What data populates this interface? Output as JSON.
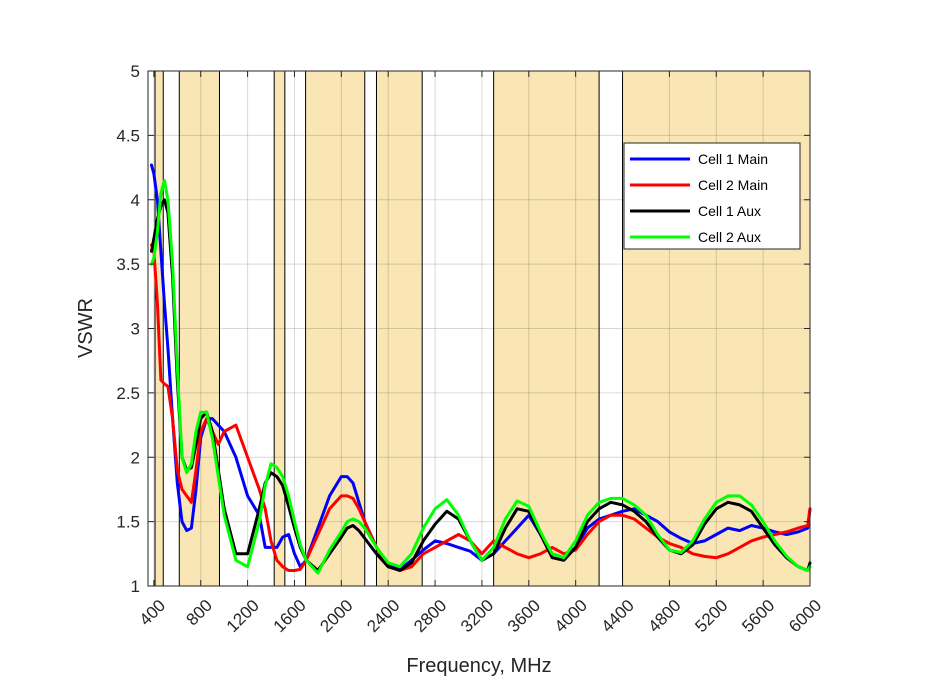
{
  "chart_data": {
    "type": "line",
    "xlabel": "Frequency, MHz",
    "ylabel": "VSWR",
    "xlim": [
      350,
      6000
    ],
    "ylim": [
      1,
      5
    ],
    "xticks": [
      400,
      800,
      1200,
      1600,
      2000,
      2400,
      2800,
      3200,
      3600,
      4000,
      4400,
      4800,
      5200,
      5600,
      6000
    ],
    "xtick_labels": [
      "400",
      "800",
      "1200",
      "1600",
      "2000",
      "2400",
      "2800",
      "3200",
      "3600",
      "4000",
      "4400",
      "4800",
      "5200",
      "5600",
      "6000"
    ],
    "yticks": [
      1,
      1.5,
      2,
      2.5,
      3,
      3.5,
      4,
      4.5,
      5
    ],
    "ytick_labels": [
      "1",
      "1.5",
      "2",
      "2.5",
      "3",
      "3.5",
      "4",
      "4.5",
      "5"
    ],
    "grid": true,
    "legend_position": "top-right",
    "band_color": "#fae6b4",
    "bands": [
      [
        410,
        480
      ],
      [
        617,
        960
      ],
      [
        1427,
        1518
      ],
      [
        1695,
        2200
      ],
      [
        2300,
        2690
      ],
      [
        3300,
        4200
      ],
      [
        4400,
        6000
      ]
    ],
    "series": [
      {
        "name": "Cell 1 Main",
        "color": "#0000ff",
        "x": [
          380,
          400,
          430,
          460,
          490,
          520,
          560,
          600,
          640,
          680,
          720,
          760,
          800,
          850,
          900,
          950,
          1000,
          1100,
          1200,
          1300,
          1350,
          1400,
          1450,
          1500,
          1550,
          1600,
          1650,
          1700,
          1800,
          1900,
          2000,
          2050,
          2100,
          2150,
          2200,
          2300,
          2400,
          2500,
          2600,
          2700,
          2800,
          2900,
          3000,
          3100,
          3200,
          3300,
          3400,
          3500,
          3600,
          3700,
          3800,
          3900,
          4000,
          4100,
          4200,
          4300,
          4400,
          4500,
          4600,
          4700,
          4800,
          4900,
          5000,
          5100,
          5200,
          5300,
          5400,
          5500,
          5600,
          5700,
          5800,
          5900,
          5980,
          6000
        ],
        "y": [
          4.27,
          4.2,
          4.0,
          3.6,
          3.2,
          2.85,
          2.3,
          1.8,
          1.5,
          1.43,
          1.45,
          1.75,
          2.15,
          2.3,
          2.3,
          2.25,
          2.2,
          2.0,
          1.7,
          1.55,
          1.3,
          1.3,
          1.3,
          1.38,
          1.4,
          1.25,
          1.15,
          1.2,
          1.45,
          1.7,
          1.85,
          1.85,
          1.8,
          1.65,
          1.5,
          1.3,
          1.17,
          1.13,
          1.2,
          1.28,
          1.35,
          1.33,
          1.3,
          1.27,
          1.2,
          1.25,
          1.35,
          1.45,
          1.55,
          1.4,
          1.25,
          1.22,
          1.3,
          1.45,
          1.52,
          1.55,
          1.58,
          1.6,
          1.55,
          1.5,
          1.42,
          1.37,
          1.33,
          1.35,
          1.4,
          1.45,
          1.43,
          1.47,
          1.45,
          1.42,
          1.4,
          1.42,
          1.45,
          1.6
        ]
      },
      {
        "name": "Cell 2 Main",
        "color": "#ff0000",
        "x": [
          380,
          400,
          430,
          460,
          490,
          520,
          560,
          600,
          640,
          680,
          720,
          760,
          800,
          850,
          900,
          950,
          1000,
          1100,
          1200,
          1300,
          1350,
          1400,
          1450,
          1500,
          1550,
          1600,
          1650,
          1700,
          1800,
          1900,
          2000,
          2050,
          2100,
          2150,
          2200,
          2300,
          2400,
          2500,
          2600,
          2700,
          2800,
          2900,
          3000,
          3100,
          3200,
          3300,
          3400,
          3500,
          3600,
          3700,
          3800,
          3900,
          4000,
          4100,
          4200,
          4300,
          4400,
          4500,
          4600,
          4700,
          4800,
          4900,
          5000,
          5100,
          5200,
          5300,
          5400,
          5500,
          5600,
          5700,
          5800,
          5900,
          5980,
          6000
        ],
        "y": [
          3.65,
          3.6,
          3.2,
          2.6,
          2.57,
          2.55,
          2.3,
          1.9,
          1.75,
          1.7,
          1.65,
          1.9,
          2.2,
          2.3,
          2.2,
          2.1,
          2.2,
          2.25,
          2.0,
          1.75,
          1.6,
          1.35,
          1.2,
          1.15,
          1.12,
          1.12,
          1.13,
          1.2,
          1.4,
          1.6,
          1.7,
          1.7,
          1.68,
          1.6,
          1.5,
          1.3,
          1.15,
          1.12,
          1.15,
          1.25,
          1.3,
          1.35,
          1.4,
          1.35,
          1.25,
          1.35,
          1.3,
          1.25,
          1.22,
          1.25,
          1.3,
          1.25,
          1.28,
          1.4,
          1.5,
          1.55,
          1.55,
          1.52,
          1.45,
          1.38,
          1.33,
          1.3,
          1.25,
          1.23,
          1.22,
          1.25,
          1.3,
          1.35,
          1.38,
          1.4,
          1.42,
          1.45,
          1.47,
          1.6
        ]
      },
      {
        "name": "Cell 1 Aux",
        "color": "#000000",
        "x": [
          380,
          400,
          430,
          460,
          490,
          520,
          560,
          600,
          640,
          680,
          720,
          760,
          800,
          850,
          900,
          950,
          1000,
          1100,
          1200,
          1300,
          1350,
          1400,
          1450,
          1500,
          1550,
          1600,
          1650,
          1700,
          1800,
          1900,
          2000,
          2050,
          2100,
          2150,
          2200,
          2300,
          2400,
          2500,
          2600,
          2700,
          2800,
          2900,
          3000,
          3100,
          3200,
          3300,
          3400,
          3500,
          3600,
          3700,
          3800,
          3900,
          4000,
          4100,
          4200,
          4300,
          4400,
          4500,
          4600,
          4700,
          4800,
          4900,
          5000,
          5100,
          5200,
          5300,
          5400,
          5500,
          5600,
          5700,
          5800,
          5900,
          5980,
          6000
        ],
        "y": [
          3.6,
          3.7,
          3.85,
          3.95,
          4.0,
          3.9,
          3.4,
          2.6,
          2.0,
          1.9,
          1.92,
          2.1,
          2.3,
          2.35,
          2.2,
          1.9,
          1.6,
          1.25,
          1.25,
          1.6,
          1.8,
          1.88,
          1.85,
          1.78,
          1.62,
          1.45,
          1.3,
          1.2,
          1.12,
          1.25,
          1.38,
          1.45,
          1.47,
          1.43,
          1.37,
          1.25,
          1.15,
          1.12,
          1.18,
          1.35,
          1.48,
          1.58,
          1.52,
          1.35,
          1.2,
          1.25,
          1.45,
          1.6,
          1.58,
          1.4,
          1.22,
          1.2,
          1.3,
          1.5,
          1.6,
          1.65,
          1.63,
          1.58,
          1.5,
          1.38,
          1.28,
          1.25,
          1.32,
          1.48,
          1.6,
          1.65,
          1.63,
          1.58,
          1.45,
          1.32,
          1.22,
          1.15,
          1.12,
          1.18
        ]
      },
      {
        "name": "Cell 2 Aux",
        "color": "#00ff00",
        "x": [
          380,
          400,
          430,
          460,
          490,
          520,
          560,
          600,
          640,
          680,
          720,
          760,
          800,
          850,
          900,
          950,
          1000,
          1100,
          1200,
          1300,
          1350,
          1400,
          1450,
          1500,
          1550,
          1600,
          1650,
          1700,
          1800,
          1900,
          2000,
          2050,
          2100,
          2150,
          2200,
          2300,
          2400,
          2500,
          2600,
          2700,
          2800,
          2900,
          3000,
          3100,
          3200,
          3300,
          3400,
          3500,
          3600,
          3700,
          3800,
          3900,
          4000,
          4100,
          4200,
          4300,
          4400,
          4500,
          4600,
          4700,
          4800,
          4900,
          5000,
          5100,
          5200,
          5300,
          5400,
          5500,
          5600,
          5700,
          5800,
          5900,
          5980,
          6000
        ],
        "y": [
          3.5,
          3.55,
          3.75,
          4.05,
          4.15,
          4.0,
          3.5,
          2.7,
          2.0,
          1.88,
          1.95,
          2.2,
          2.35,
          2.35,
          2.15,
          1.85,
          1.55,
          1.2,
          1.15,
          1.5,
          1.78,
          1.95,
          1.92,
          1.85,
          1.7,
          1.5,
          1.32,
          1.2,
          1.1,
          1.28,
          1.42,
          1.5,
          1.52,
          1.5,
          1.45,
          1.3,
          1.18,
          1.15,
          1.25,
          1.45,
          1.6,
          1.67,
          1.55,
          1.35,
          1.2,
          1.3,
          1.52,
          1.66,
          1.62,
          1.42,
          1.25,
          1.22,
          1.35,
          1.55,
          1.65,
          1.68,
          1.68,
          1.63,
          1.55,
          1.4,
          1.28,
          1.26,
          1.35,
          1.52,
          1.65,
          1.7,
          1.7,
          1.63,
          1.5,
          1.35,
          1.23,
          1.15,
          1.12,
          1.15
        ]
      }
    ]
  }
}
